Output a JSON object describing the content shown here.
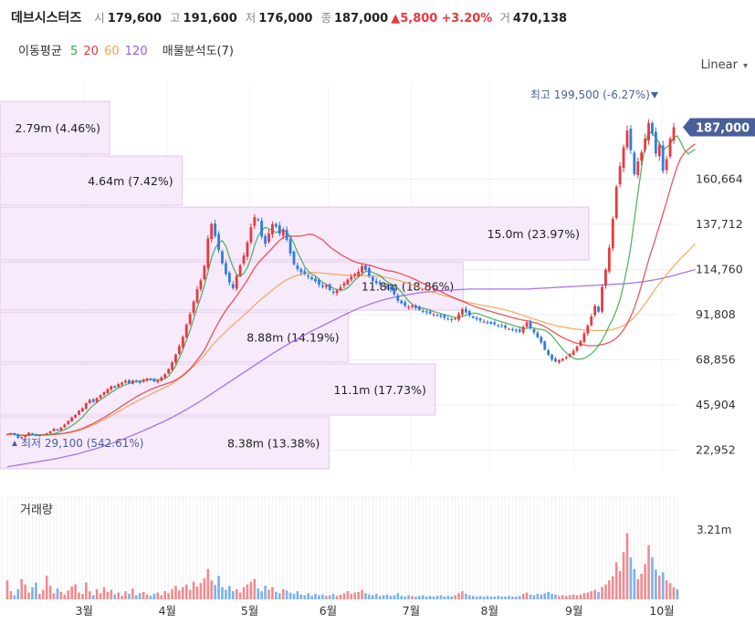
{
  "header": {
    "name": "데브시스터즈",
    "open_label": "시",
    "open": "179,600",
    "high_label": "고",
    "high": "191,600",
    "low_label": "저",
    "low": "176,000",
    "close_label": "종",
    "close": "187,000",
    "change": "▲5,800",
    "change_pct": "+3.20%",
    "volume_label": "거",
    "volume": "470,138"
  },
  "indicators": {
    "ma_label": "이동평균",
    "ma_periods": [
      "5",
      "20",
      "60",
      "120"
    ],
    "ma_colors": [
      "#3aa84a",
      "#e8393f",
      "#f5a04a",
      "#9b5de5"
    ],
    "vp_label": "매물분석도(7)"
  },
  "scale": {
    "label": "Linear",
    "chevron": "▾"
  },
  "volume_panel": {
    "label": "거래량",
    "axis_label": "3.21m"
  },
  "chart_data": {
    "type": "candlestick",
    "y_ticks": [
      "22,952",
      "45,904",
      "68,856",
      "91,808",
      "114,760",
      "137,712",
      "160,664"
    ],
    "y_tick_values": [
      22952,
      45904,
      68856,
      91808,
      114760,
      137712,
      160664
    ],
    "ylim": [
      13000,
      209000
    ],
    "x_ticks": [
      "3월",
      "4월",
      "5월",
      "6월",
      "7월",
      "8월",
      "9월",
      "10월"
    ],
    "last_price_label": "187,000",
    "last_price": 187000,
    "max_label": "최고 199,500 (-6.27%)",
    "max_value": 199500,
    "min_label": "최저 29,100 (542.61%)",
    "min_value": 29100,
    "volume_profile": [
      {
        "label": "8.38m (13.38%)",
        "fraction": 0.5587
      },
      {
        "label": "11.1m (17.73%)",
        "fraction": 0.7393
      },
      {
        "label": "8.88m (14.19%)",
        "fraction": 0.5917
      },
      {
        "label": "11.8m (18.86%)",
        "fraction": 0.7865
      },
      {
        "label": "15.0m (23.97%)",
        "fraction": 1.0
      },
      {
        "label": "4.64m (7.42%)",
        "fraction": 0.3096
      },
      {
        "label": "2.79m (4.46%)",
        "fraction": 0.186
      }
    ],
    "close_series": [
      31000,
      31500,
      30800,
      29100,
      29600,
      30500,
      31800,
      31000,
      30200,
      30400,
      30900,
      31500,
      32500,
      33800,
      33000,
      34500,
      36000,
      37800,
      39500,
      40800,
      43000,
      44200,
      46800,
      48500,
      47500,
      49500,
      50800,
      52400,
      53800,
      55400,
      54700,
      56500,
      57300,
      58200,
      57100,
      58400,
      57800,
      57200,
      58600,
      59300,
      58700,
      57900,
      58400,
      59800,
      61500,
      64200,
      67500,
      71500,
      75800,
      80500,
      86800,
      92100,
      98500,
      104800,
      109200,
      116500,
      130500,
      137800,
      131800,
      124600,
      117900,
      112500,
      108100,
      105300,
      111500,
      116900,
      121800,
      128500,
      136200,
      141300,
      139800,
      131400,
      127800,
      133100,
      137800,
      136500,
      132900,
      135100,
      129800,
      122900,
      117400,
      114900,
      113300,
      112600,
      111100,
      109800,
      108700,
      107100,
      105900,
      106600,
      104300,
      102900,
      104100,
      105700,
      107800,
      109600,
      111100,
      112400,
      113600,
      116500,
      114500,
      111500,
      108900,
      107800,
      107300,
      106800,
      105600,
      104600,
      102100,
      98900,
      97600,
      96300,
      95900,
      96200,
      95200,
      94100,
      93500,
      92900,
      92400,
      91900,
      91300,
      90800,
      90200,
      89500,
      89000,
      89800,
      92100,
      94600,
      92900,
      91400,
      90200,
      89400,
      88800,
      88300,
      87800,
      87200,
      86900,
      86300,
      85800,
      85100,
      84600,
      84000,
      83600,
      83100,
      85600,
      87900,
      85000,
      82800,
      80300,
      77600,
      74000,
      71400,
      69000,
      68000,
      68600,
      69400,
      70200,
      71800,
      73400,
      75600,
      78500,
      82300,
      86300,
      90900,
      96300,
      93300,
      105900,
      114600,
      125800,
      140500,
      156800,
      167200,
      176800,
      185300,
      175400,
      163100,
      169600,
      174200,
      181200,
      189100,
      183800,
      173600,
      178200,
      164800,
      170800,
      181200,
      187000
    ],
    "ma5": [
      31000,
      31250,
      31100,
      30600,
      30400,
      30300,
      30400,
      30800,
      30900,
      30800,
      30900,
      30700,
      30900,
      31300,
      31800,
      32600,
      33400,
      34300,
      35400,
      36700,
      38100,
      39800,
      41800,
      44000,
      45800,
      47100,
      48600,
      49800,
      51000,
      52300,
      53400,
      54600,
      55400,
      56200,
      56900,
      57500,
      57900,
      58100,
      58300,
      58600,
      58800,
      58800,
      58700,
      58900,
      59300,
      60600,
      62900,
      65800,
      69700,
      74000,
      78800,
      83800,
      89500,
      95200,
      100500,
      106600,
      113400,
      120600,
      125400,
      128400,
      129400,
      126700,
      121000,
      115900,
      112100,
      111100,
      112800,
      115700,
      120600,
      126900,
      131700,
      134700,
      136100,
      135400,
      134600,
      133500,
      134200,
      134800,
      133600,
      131600,
      127900,
      123500,
      119900,
      116100,
      113900,
      112300,
      111400,
      109700,
      108200,
      107100,
      106200,
      105200,
      104500,
      104300,
      104400,
      105400,
      107300,
      109300,
      110900,
      112500,
      113700,
      114000,
      113200,
      112500,
      111700,
      110000,
      108500,
      107500,
      106600,
      105200,
      103300,
      101000,
      98700,
      97000,
      95800,
      95400,
      95100,
      94600,
      94000,
      93400,
      92800,
      92300,
      91800,
      91300,
      90800,
      90400,
      90400,
      90900,
      91500,
      92200,
      92500,
      92500,
      91900,
      91200,
      90600,
      89900,
      89300,
      88700,
      88200,
      87600,
      87100,
      86500,
      85900,
      85400,
      84900,
      84800,
      85200,
      85000,
      84500,
      84300,
      83900,
      82800,
      81100,
      78800,
      76600,
      74200,
      72400,
      70900,
      69700,
      69200,
      69300,
      69600,
      70600,
      71900,
      73700,
      76000,
      78900,
      82200,
      86300,
      89700,
      94100,
      99300,
      107100,
      115800,
      126200,
      140000,
      153600,
      166500,
      177800,
      184700,
      183900,
      181800,
      178800,
      175600,
      176700,
      178400,
      181800,
      182600,
      179300,
      175400,
      173400,
      174700,
      175800
    ],
    "ma20": [
      31000,
      31250,
      31100,
      30600,
      30500,
      30500,
      30600,
      30700,
      30700,
      30600,
      30600,
      30700,
      30800,
      31000,
      31100,
      31300,
      31600,
      31900,
      32300,
      32800,
      33400,
      34000,
      34800,
      35700,
      36500,
      37500,
      38500,
      39500,
      40600,
      41800,
      42900,
      44200,
      45400,
      46600,
      47800,
      48900,
      50000,
      51000,
      52000,
      52900,
      53800,
      54500,
      55200,
      55800,
      56400,
      57000,
      57700,
      58600,
      59700,
      61000,
      62600,
      64300,
      66400,
      68700,
      71100,
      73800,
      77400,
      81000,
      84700,
      88000,
      91100,
      93900,
      96500,
      98800,
      101300,
      103900,
      106600,
      109400,
      112400,
      115500,
      118000,
      120000,
      121900,
      123800,
      125700,
      127700,
      129500,
      131000,
      131600,
      131700,
      131600,
      131700,
      131800,
      132100,
      132600,
      132600,
      131900,
      130800,
      129800,
      128000,
      126300,
      124900,
      123700,
      122400,
      121400,
      120400,
      119400,
      118700,
      118000,
      117700,
      117300,
      117000,
      116400,
      115800,
      115200,
      114700,
      114200,
      113900,
      113600,
      113100,
      112500,
      111800,
      111100,
      110300,
      109500,
      108600,
      107700,
      106900,
      106000,
      105300,
      104500,
      103600,
      102700,
      101800,
      100900,
      100100,
      99300,
      98600,
      97800,
      97000,
      96300,
      95600,
      95000,
      94400,
      93900,
      93400,
      92800,
      92300,
      91800,
      91300,
      90800,
      90300,
      89800,
      89300,
      89000,
      88700,
      88300,
      87800,
      87300,
      86600,
      85700,
      84700,
      83500,
      82300,
      81200,
      80200,
      79300,
      78500,
      77800,
      77200,
      76800,
      76400,
      76100,
      76000,
      76000,
      76300,
      76600,
      77000,
      77700,
      78600,
      79900,
      81700,
      84200,
      87200,
      90800,
      95300,
      100700,
      106700,
      113100,
      119600,
      125400,
      131100,
      137000,
      143000,
      149200,
      155600,
      161600,
      167100,
      171400,
      174100,
      175700,
      177200,
      178500
    ],
    "ma60": [
      31000,
      31000,
      30800,
      30600,
      30600,
      30600,
      30700,
      30700,
      30700,
      30600,
      30600,
      30700,
      30800,
      30900,
      31100,
      31300,
      31500,
      31800,
      32100,
      32500,
      33000,
      33600,
      34300,
      35000,
      35800,
      36600,
      37500,
      38400,
      39400,
      40400,
      41400,
      42500,
      43500,
      44600,
      45600,
      46600,
      47600,
      48600,
      49500,
      50400,
      51300,
      52200,
      53100,
      53900,
      54800,
      55700,
      56800,
      58000,
      59300,
      60700,
      62200,
      63800,
      65500,
      67300,
      69200,
      71200,
      73400,
      75700,
      77800,
      79700,
      81500,
      83300,
      85000,
      86600,
      88200,
      89800,
      91400,
      93100,
      94800,
      96600,
      98300,
      99900,
      101400,
      102900,
      104300,
      105700,
      107100,
      108400,
      109500,
      110400,
      111200,
      111800,
      112300,
      112700,
      113000,
      113200,
      113200,
      113100,
      112900,
      112700,
      112500,
      112300,
      112100,
      112000,
      111900,
      111800,
      111700,
      111600,
      111600,
      111600,
      111600,
      111600,
      111500,
      111400,
      111200,
      110900,
      110600,
      110200,
      109800,
      109300,
      108800,
      108200,
      107600,
      106900,
      106200,
      105500,
      104900,
      104200,
      103600,
      103100,
      102500,
      102000,
      101500,
      101000,
      100400,
      99900,
      99400,
      98900,
      98400,
      97900,
      97500,
      97100,
      96700,
      96400,
      96100,
      95700,
      95400,
      95000,
      94600,
      94200,
      93700,
      93200,
      92600,
      92000,
      91400,
      90800,
      90200,
      89600,
      89000,
      88400,
      87800,
      87200,
      86700,
      86200,
      85800,
      85500,
      85200,
      84900,
      84600,
      84400,
      84200,
      84000,
      83900,
      83800,
      83700,
      83700,
      83700,
      83800,
      84000,
      84300,
      84800,
      85400,
      86300,
      87400,
      88800,
      90500,
      92500,
      94800,
      97300,
      99900,
      102600,
      105200,
      107600,
      109900,
      112100,
      114300,
      116500,
      118500,
      120400,
      122200,
      124000,
      125900,
      127900
    ],
    "ma120": [
      14500,
      14800,
      15100,
      15400,
      15700,
      16000,
      16300,
      16600,
      16900,
      17200,
      17500,
      17800,
      18100,
      18400,
      18800,
      19200,
      19600,
      20000,
      20400,
      20800,
      21300,
      21800,
      22300,
      22800,
      23300,
      23900,
      24500,
      25100,
      25700,
      26300,
      27000,
      27700,
      28400,
      29100,
      29800,
      30500,
      31300,
      32100,
      32900,
      33700,
      34500,
      35300,
      36100,
      36900,
      37800,
      38700,
      39600,
      40600,
      41600,
      42600,
      43600,
      44700,
      45800,
      46900,
      48000,
      49200,
      50400,
      51600,
      52800,
      54000,
      55200,
      56400,
      57600,
      58800,
      60000,
      61200,
      62400,
      63600,
      64800,
      66000,
      67200,
      68400,
      69600,
      70800,
      72000,
      73100,
      74200,
      75300,
      76400,
      77500,
      78500,
      79500,
      80500,
      81500,
      82500,
      83500,
      84400,
      85300,
      86200,
      87100,
      88000,
      88900,
      89800,
      90700,
      91600,
      92500,
      93300,
      94100,
      94900,
      95600,
      96300,
      97000,
      97600,
      98200,
      98800,
      99300,
      99800,
      100200,
      100600,
      101000,
      101400,
      101700,
      102000,
      102300,
      102600,
      102900,
      103100,
      103300,
      103500,
      103700,
      103900,
      104000,
      104100,
      104200,
      104300,
      104400,
      104500,
      104600,
      104700,
      104800,
      104800,
      104800,
      104800,
      104800,
      104800,
      104800,
      104800,
      104800,
      104800,
      104800,
      104800,
      104800,
      104800,
      104800,
      104800,
      104800,
      104900,
      105000,
      105100,
      105200,
      105300,
      105400,
      105500,
      105600,
      105700,
      105800,
      105900,
      106000,
      106100,
      106200,
      106300,
      106400,
      106500,
      106600,
      106700,
      106800,
      106900,
      107000,
      107100,
      107200,
      107300,
      107400,
      107500,
      107600,
      107800,
      108000,
      108200,
      108400,
      108700,
      109000,
      109300,
      109600,
      110000,
      110400,
      110800,
      111200,
      111700,
      112200,
      112700,
      113200,
      113700,
      114200,
      114700
    ],
    "volume_fraction": [
      0.28,
      0.12,
      0.06,
      0.15,
      0.3,
      0.22,
      0.1,
      0.18,
      0.25,
      0.08,
      0.14,
      0.35,
      0.2,
      0.09,
      0.16,
      0.11,
      0.07,
      0.13,
      0.19,
      0.22,
      0.1,
      0.08,
      0.25,
      0.12,
      0.06,
      0.15,
      0.09,
      0.18,
      0.11,
      0.14,
      0.07,
      0.1,
      0.05,
      0.12,
      0.08,
      0.16,
      0.06,
      0.09,
      0.11,
      0.07,
      0.05,
      0.08,
      0.1,
      0.06,
      0.12,
      0.09,
      0.15,
      0.2,
      0.13,
      0.18,
      0.22,
      0.14,
      0.26,
      0.19,
      0.24,
      0.31,
      0.45,
      0.28,
      0.21,
      0.35,
      0.18,
      0.14,
      0.2,
      0.12,
      0.15,
      0.1,
      0.18,
      0.22,
      0.26,
      0.3,
      0.16,
      0.12,
      0.2,
      0.14,
      0.18,
      0.11,
      0.09,
      0.15,
      0.13,
      0.1,
      0.08,
      0.12,
      0.07,
      0.06,
      0.09,
      0.05,
      0.08,
      0.06,
      0.07,
      0.05,
      0.06,
      0.08,
      0.05,
      0.07,
      0.09,
      0.12,
      0.08,
      0.1,
      0.11,
      0.14,
      0.09,
      0.07,
      0.06,
      0.08,
      0.05,
      0.06,
      0.07,
      0.05,
      0.06,
      0.09,
      0.05,
      0.04,
      0.06,
      0.05,
      0.04,
      0.05,
      0.06,
      0.04,
      0.05,
      0.04,
      0.05,
      0.06,
      0.04,
      0.05,
      0.04,
      0.06,
      0.09,
      0.12,
      0.08,
      0.06,
      0.05,
      0.04,
      0.05,
      0.04,
      0.05,
      0.04,
      0.04,
      0.05,
      0.04,
      0.04,
      0.05,
      0.04,
      0.04,
      0.05,
      0.08,
      0.1,
      0.07,
      0.06,
      0.08,
      0.07,
      0.09,
      0.11,
      0.08,
      0.07,
      0.05,
      0.06,
      0.05,
      0.06,
      0.07,
      0.06,
      0.07,
      0.09,
      0.1,
      0.12,
      0.14,
      0.11,
      0.18,
      0.22,
      0.28,
      0.34,
      0.55,
      0.42,
      0.7,
      0.98,
      0.62,
      0.45,
      0.3,
      0.38,
      0.52,
      0.8,
      0.62,
      0.44,
      0.35,
      0.4,
      0.28,
      0.24,
      0.18,
      0.15
    ]
  }
}
